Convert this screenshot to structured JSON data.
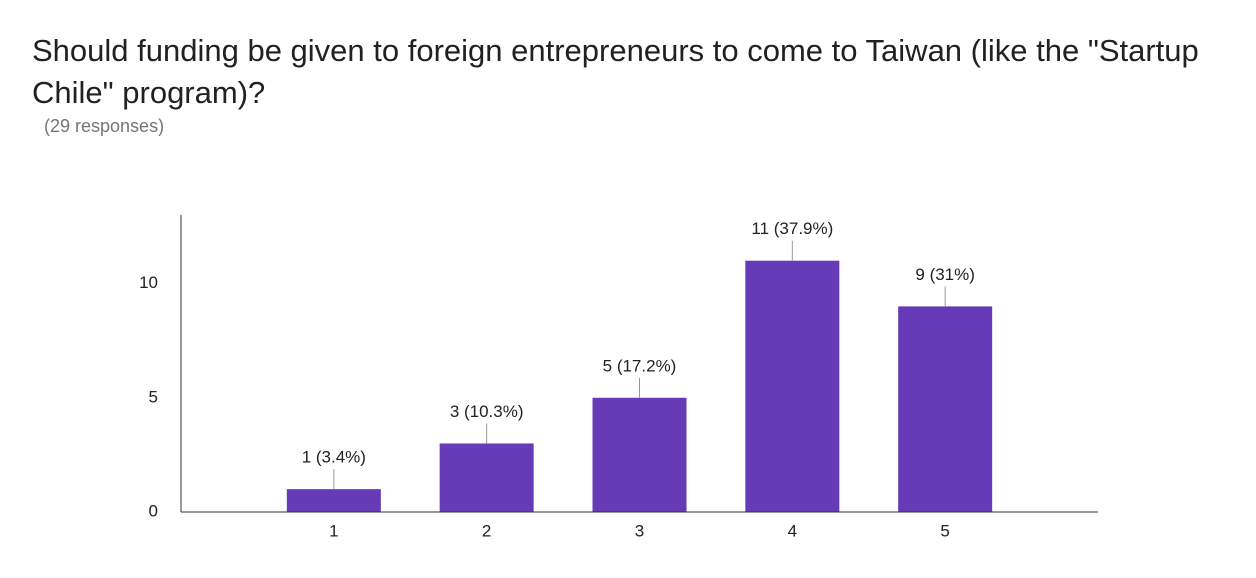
{
  "chart_data": {
    "type": "bar",
    "title": "Should funding be given to foreign entrepreneurs to come to Taiwan (like the \"Startup Chile\" program)?",
    "subtitle": "(29 responses)",
    "categories": [
      "1",
      "2",
      "3",
      "4",
      "5"
    ],
    "values": [
      1,
      3,
      5,
      11,
      9
    ],
    "value_labels": [
      "1 (3.4%)",
      "3 (10.3%)",
      "5 (17.2%)",
      "11 (37.9%)",
      "9 (31%)"
    ],
    "color": "#673ab7",
    "ylim": [
      0,
      13
    ],
    "yticks": [
      0,
      5,
      10
    ],
    "grid": false
  }
}
